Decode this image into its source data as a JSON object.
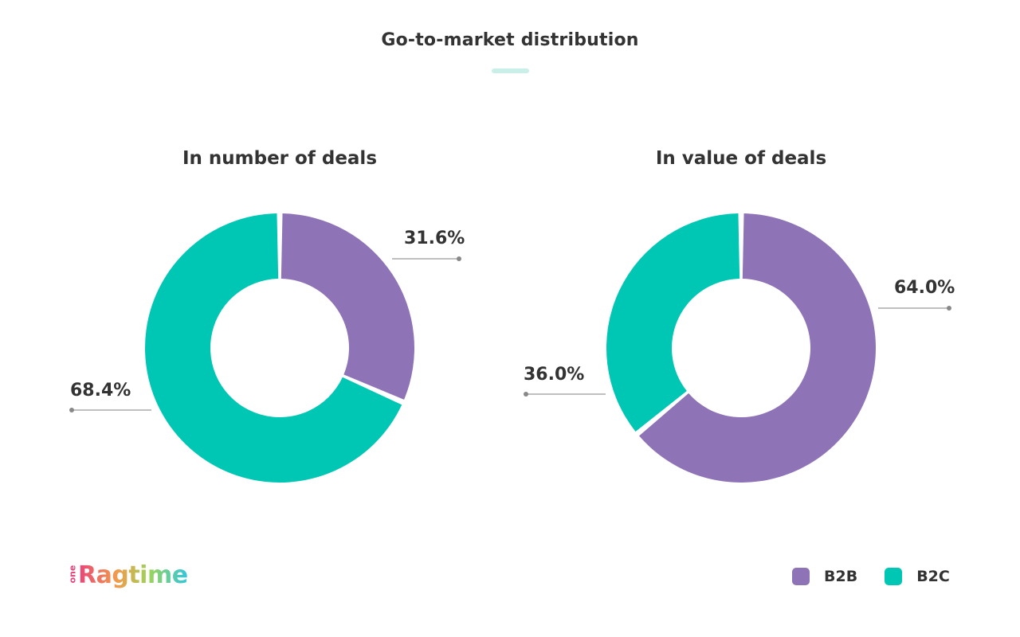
{
  "page": {
    "title": "Go-to-market distribution",
    "brand": {
      "small": "one",
      "word": "Ragtime"
    }
  },
  "colors": {
    "B2B": "#8e74b7",
    "B2C": "#00c7b4",
    "leader": "#999999"
  },
  "legend": [
    {
      "label": "B2B",
      "color": "#8e74b7"
    },
    {
      "label": "B2C",
      "color": "#00c7b4"
    }
  ],
  "chart_data": [
    {
      "type": "pie",
      "title": "In number of deals",
      "categories": [
        "B2B",
        "B2C"
      ],
      "values": [
        31.6,
        68.4
      ],
      "labels": [
        "31.6%",
        "68.4%"
      ]
    },
    {
      "type": "pie",
      "title": "In value of deals",
      "categories": [
        "B2B",
        "B2C"
      ],
      "values": [
        64.0,
        36.0
      ],
      "labels": [
        "64.0%",
        "36.0%"
      ]
    }
  ]
}
